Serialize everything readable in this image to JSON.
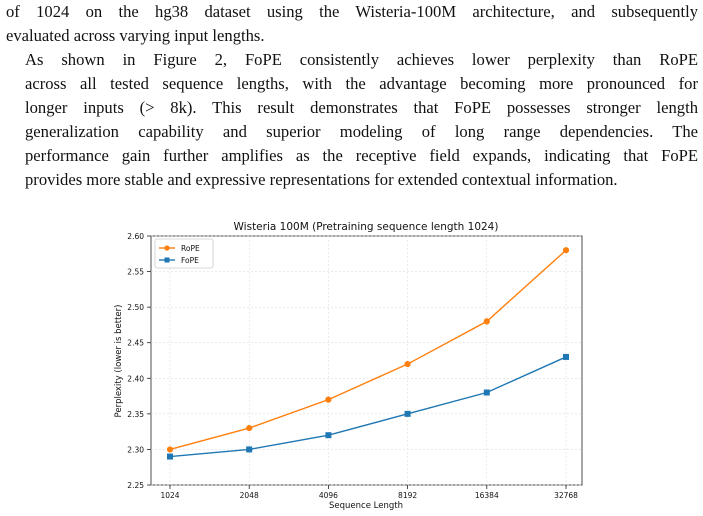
{
  "paper": {
    "paragraph1_lines": [
      "of 1024 on the hg38 dataset using the Wisteria-100M architecture, and subsequently",
      "evaluated across varying input lengths."
    ],
    "paragraph2_lines": [
      "As shown in Figure 2, FoPE consistently achieves lower perplexity than RoPE",
      "across all tested sequence lengths, with the advantage becoming more pronounced for",
      "longer inputs (> 8k). This result demonstrates that FoPE possesses stronger length",
      "generalization capability and superior modeling of long range dependencies. The",
      "performance gain further amplifies as the receptive field expands, indicating that FoPE",
      "provides more stable and expressive representations for extended contextual information."
    ]
  },
  "chart_data": {
    "type": "line",
    "title": "Wisteria 100M (Pretraining sequence length 1024)",
    "xlabel": "Sequence Length",
    "ylabel": "Perplexity (lower is better)",
    "x": [
      1024,
      2048,
      4096,
      8192,
      16384,
      32768
    ],
    "x_tick_labels": [
      "1024",
      "2048",
      "4096",
      "8192",
      "16384",
      "32768"
    ],
    "x_scale": "log2",
    "ylim": [
      2.25,
      2.6
    ],
    "y_ticks": [
      2.25,
      2.3,
      2.35,
      2.4,
      2.45,
      2.5,
      2.55,
      2.6
    ],
    "y_tick_labels": [
      "2.25",
      "2.30",
      "2.35",
      "2.40",
      "2.45",
      "2.50",
      "2.55",
      "2.60"
    ],
    "grid": true,
    "legend_position": "top-left",
    "series": [
      {
        "name": "RoPE",
        "marker": "circle",
        "color": "#ff7f0e",
        "values": [
          2.3,
          2.33,
          2.37,
          2.42,
          2.48,
          2.58
        ]
      },
      {
        "name": "FoPE",
        "marker": "square",
        "color": "#1f77b4",
        "values": [
          2.29,
          2.3,
          2.32,
          2.35,
          2.38,
          2.43
        ]
      }
    ]
  }
}
